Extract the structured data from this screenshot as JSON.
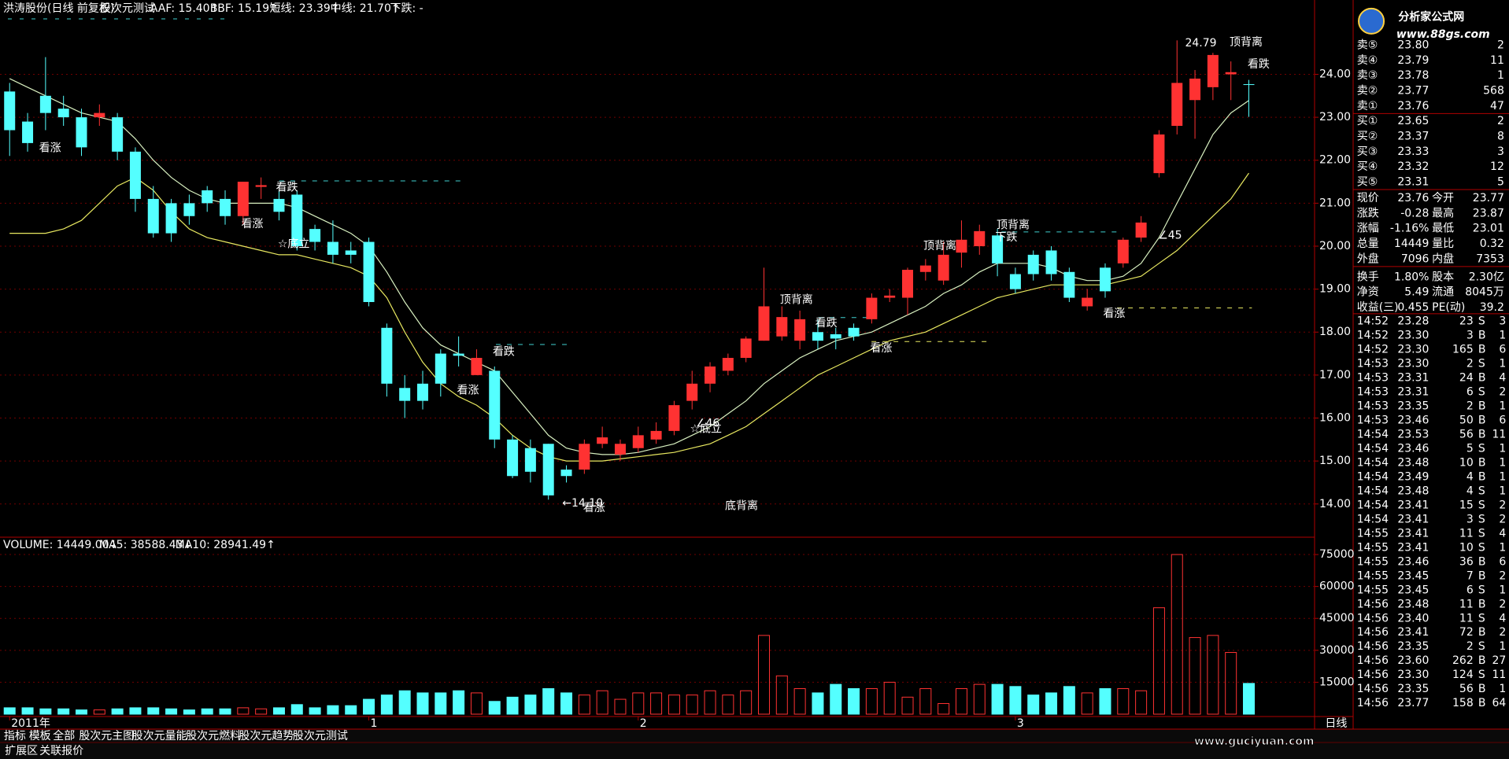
{
  "header": {
    "stock": "洪涛股份(日线 前复权)",
    "formula": "股次元测试",
    "items": [
      {
        "text": "AAF: 15.40↑",
        "color": "#ffffff"
      },
      {
        "text": "BBF: 15.19↑",
        "color": "#ff66ff"
      },
      {
        "text": "短线: 23.39↑",
        "color": "#ffffff"
      },
      {
        "text": "中线: 21.70↑",
        "color": "#ffff60"
      },
      {
        "text": "下跌: -",
        "color": "#40ff40"
      }
    ]
  },
  "chart_data": [
    {
      "type": "candlestick",
      "categories": [
        "2011年",
        null,
        null,
        null,
        null,
        null,
        null,
        null,
        null,
        null,
        null,
        null,
        null,
        null,
        null,
        null,
        null,
        null,
        null,
        null,
        "1",
        null,
        null,
        null,
        null,
        null,
        null,
        null,
        null,
        null,
        null,
        null,
        null,
        null,
        null,
        "2",
        null,
        null,
        null,
        null,
        null,
        null,
        null,
        null,
        null,
        null,
        null,
        null,
        null,
        null,
        null,
        null,
        null,
        null,
        null,
        null,
        "3",
        null,
        null,
        null,
        null,
        null,
        null,
        null,
        null,
        null,
        null,
        null,
        null,
        null
      ],
      "open": [
        23.6,
        22.9,
        23.5,
        23.2,
        23.0,
        23.0,
        23.0,
        22.2,
        21.1,
        21.0,
        21.0,
        21.3,
        21.1,
        20.7,
        21.38,
        21.1,
        21.2,
        20.4,
        20.1,
        19.9,
        20.1,
        18.1,
        16.7,
        16.8,
        17.5,
        17.5,
        17.0,
        17.1,
        15.5,
        15.3,
        15.4,
        14.8,
        14.8,
        15.4,
        15.15,
        15.3,
        15.5,
        15.7,
        16.4,
        16.8,
        17.1,
        17.4,
        17.8,
        17.9,
        17.8,
        18.0,
        17.95,
        18.1,
        18.3,
        18.8,
        18.8,
        19.4,
        19.2,
        19.85,
        20.0,
        20.25,
        19.35,
        19.8,
        19.9,
        19.4,
        18.6,
        19.5,
        19.6,
        20.2,
        21.7,
        22.8,
        23.4,
        23.7,
        24.0,
        23.77
      ],
      "high": [
        23.8,
        23.1,
        24.4,
        23.5,
        23.2,
        23.3,
        23.1,
        22.3,
        21.4,
        21.1,
        21.2,
        21.4,
        21.3,
        21.5,
        21.6,
        21.3,
        21.3,
        20.5,
        20.6,
        20.1,
        20.2,
        18.2,
        17.0,
        17.1,
        17.6,
        17.9,
        17.6,
        17.2,
        15.6,
        15.5,
        15.4,
        14.9,
        15.5,
        15.8,
        15.5,
        15.8,
        15.9,
        16.4,
        17.1,
        17.3,
        17.5,
        17.9,
        19.5,
        18.6,
        18.5,
        18.3,
        18.1,
        18.2,
        18.9,
        19.0,
        19.5,
        19.7,
        20.1,
        20.6,
        20.5,
        20.4,
        19.5,
        19.9,
        20.0,
        19.5,
        19.0,
        19.6,
        20.2,
        20.7,
        22.7,
        24.79,
        24.1,
        24.5,
        24.3,
        23.87
      ],
      "low": [
        22.1,
        22.2,
        22.7,
        22.8,
        22.1,
        22.8,
        22.0,
        20.8,
        20.2,
        20.1,
        20.5,
        20.8,
        20.5,
        20.5,
        21.1,
        20.6,
        19.9,
        19.9,
        19.6,
        19.6,
        18.6,
        16.5,
        16.0,
        16.2,
        16.5,
        17.2,
        17.0,
        15.3,
        14.6,
        14.5,
        14.1,
        14.5,
        14.7,
        15.3,
        15.0,
        15.2,
        15.4,
        15.6,
        16.2,
        16.6,
        17.0,
        17.3,
        17.8,
        17.8,
        17.6,
        17.6,
        17.6,
        17.8,
        18.2,
        18.7,
        18.4,
        19.2,
        19.1,
        19.5,
        19.8,
        19.3,
        18.9,
        19.2,
        19.2,
        18.7,
        18.5,
        18.8,
        19.5,
        20.1,
        21.6,
        22.6,
        22.5,
        23.4,
        23.4,
        23.01
      ],
      "close": [
        22.7,
        22.4,
        23.1,
        23.0,
        22.3,
        23.1,
        22.2,
        21.1,
        20.3,
        20.3,
        20.7,
        21.0,
        20.7,
        21.5,
        21.42,
        20.8,
        20.0,
        20.1,
        19.8,
        19.8,
        18.7,
        16.8,
        16.4,
        16.4,
        16.8,
        17.45,
        17.4,
        15.5,
        14.65,
        14.75,
        14.2,
        14.65,
        15.4,
        15.55,
        15.4,
        15.6,
        15.7,
        16.3,
        16.8,
        17.2,
        17.4,
        17.85,
        18.6,
        18.35,
        18.3,
        17.8,
        17.85,
        17.9,
        18.8,
        18.85,
        19.45,
        19.55,
        19.8,
        20.15,
        20.35,
        19.6,
        19.0,
        19.35,
        19.35,
        18.8,
        18.8,
        18.95,
        20.15,
        20.55,
        22.6,
        23.8,
        23.9,
        24.45,
        24.05,
        23.76
      ],
      "up_color": "#ff3232",
      "down_color": "#54ffff",
      "series": [
        {
          "name": "短线",
          "color": "#d8f0c0",
          "values": [
            23.9,
            23.7,
            23.5,
            23.3,
            23.1,
            23.0,
            22.9,
            22.5,
            22.0,
            21.6,
            21.3,
            21.1,
            21.0,
            21.0,
            21.0,
            21.0,
            20.9,
            20.7,
            20.5,
            20.3,
            20.0,
            19.4,
            18.7,
            18.1,
            17.7,
            17.5,
            17.3,
            17.1,
            16.6,
            16.1,
            15.6,
            15.3,
            15.2,
            15.15,
            15.15,
            15.2,
            15.3,
            15.4,
            15.6,
            15.8,
            16.1,
            16.4,
            16.8,
            17.1,
            17.4,
            17.6,
            17.8,
            17.9,
            18.0,
            18.2,
            18.4,
            18.6,
            18.9,
            19.1,
            19.4,
            19.6,
            19.6,
            19.6,
            19.5,
            19.3,
            19.2,
            19.2,
            19.3,
            19.6,
            20.2,
            21.0,
            21.8,
            22.6,
            23.1,
            23.39
          ]
        },
        {
          "name": "中线",
          "color": "#e8e860",
          "values": [
            20.3,
            20.3,
            20.3,
            20.4,
            20.6,
            21.0,
            21.4,
            21.6,
            21.3,
            20.8,
            20.4,
            20.2,
            20.1,
            20.0,
            19.9,
            19.8,
            19.8,
            19.7,
            19.6,
            19.5,
            19.3,
            18.8,
            18.0,
            17.3,
            16.8,
            16.5,
            16.3,
            16.0,
            15.6,
            15.3,
            15.1,
            15.0,
            15.0,
            15.0,
            15.05,
            15.1,
            15.15,
            15.2,
            15.3,
            15.4,
            15.6,
            15.8,
            16.1,
            16.4,
            16.7,
            17.0,
            17.2,
            17.4,
            17.6,
            17.8,
            17.9,
            18.0,
            18.2,
            18.4,
            18.6,
            18.8,
            18.9,
            19.0,
            19.1,
            19.1,
            19.1,
            19.1,
            19.2,
            19.3,
            19.6,
            19.9,
            20.3,
            20.7,
            21.1,
            21.7
          ]
        }
      ],
      "annotations": [
        "看涨",
        "看涨",
        "看跌",
        "☆底立",
        "看跌",
        "看涨",
        "←14.10",
        "看涨",
        "底背离",
        "∠46",
        "☆底立",
        "顶背离",
        "看跌",
        "看涨",
        "顶背离",
        "顶背离",
        "下跌",
        "看涨",
        "∠45",
        "24.79",
        "顶背离",
        "看跌"
      ],
      "ylim": [
        13.3,
        25.4
      ],
      "yticks": [
        {
          "value": 14,
          "label": "14.00"
        },
        {
          "value": 15,
          "label": "15.00"
        },
        {
          "value": 16,
          "label": "16.00"
        },
        {
          "value": 17,
          "label": "17.00"
        },
        {
          "value": 18,
          "label": "18.00"
        },
        {
          "value": 19,
          "label": "19.00"
        },
        {
          "value": 20,
          "label": "20.00"
        },
        {
          "value": 21,
          "label": "21.00"
        },
        {
          "value": 22,
          "label": "22.00"
        },
        {
          "value": 23,
          "label": "23.00"
        },
        {
          "value": 24,
          "label": "24.00"
        }
      ],
      "grid": true
    },
    {
      "type": "bar",
      "title": "VOLUME: 14449.00↓",
      "legend": [
        {
          "text": "MA5: 38588.43↓",
          "color": "#ffffff"
        },
        {
          "text": "MA10: 28941.49↑",
          "color": "#ffff60"
        }
      ],
      "values": [
        3000,
        3000,
        2500,
        2500,
        2000,
        2000,
        2500,
        3000,
        3000,
        2500,
        2000,
        2500,
        2500,
        3000,
        2500,
        3000,
        4500,
        3000,
        4000,
        4000,
        7000,
        9000,
        11000,
        10000,
        10000,
        11000,
        10000,
        6000,
        8000,
        9000,
        12000,
        10000,
        9000,
        11000,
        7000,
        10000,
        10000,
        9000,
        9000,
        11000,
        9000,
        11000,
        37000,
        18000,
        12000,
        10000,
        14000,
        12000,
        12000,
        15000,
        8000,
        12000,
        5000,
        12000,
        14000,
        14000,
        13000,
        9000,
        10000,
        13000,
        10000,
        12000,
        12000,
        11000,
        50000,
        75000,
        36000,
        37000,
        29000,
        14449
      ],
      "ylim": [
        0,
        80000
      ],
      "yticks": [
        15000,
        30000,
        45000,
        60000,
        75000
      ],
      "grid": true
    }
  ],
  "order_book": [
    [
      "卖⑤",
      "23.80",
      "2"
    ],
    [
      "卖④",
      "23.79",
      "11"
    ],
    [
      "卖③",
      "23.78",
      "1"
    ],
    [
      "卖②",
      "23.77",
      "568"
    ],
    [
      "卖①",
      "23.76",
      "47"
    ],
    [
      "买①",
      "23.65",
      "2"
    ],
    [
      "买②",
      "23.37",
      "8"
    ],
    [
      "买③",
      "23.33",
      "3"
    ],
    [
      "买④",
      "23.32",
      "12"
    ],
    [
      "买⑤",
      "23.31",
      "5"
    ]
  ],
  "quote": [
    [
      "现价",
      "23.76",
      "今开",
      "23.77"
    ],
    [
      "涨跌",
      "-0.28",
      "最高",
      "23.87"
    ],
    [
      "涨幅",
      "-1.16%",
      "最低",
      "23.01"
    ],
    [
      "总量",
      "14449",
      "量比",
      "0.32"
    ],
    [
      "外盘",
      "7096",
      "内盘",
      "7353"
    ],
    [
      "换手",
      "1.80%",
      "股本",
      "2.30亿"
    ],
    [
      "净资",
      "5.49",
      "流通",
      "8045万"
    ],
    [
      "收益(三)",
      "0.455",
      "PE(动)",
      "39.2"
    ]
  ],
  "ticks": [
    [
      "14:52",
      "23.28",
      "23",
      "S",
      "3"
    ],
    [
      "14:52",
      "23.30",
      "3",
      "B",
      "1"
    ],
    [
      "14:52",
      "23.30",
      "165",
      "B",
      "6"
    ],
    [
      "14:53",
      "23.30",
      "2",
      "S",
      "1"
    ],
    [
      "14:53",
      "23.31",
      "24",
      "B",
      "4"
    ],
    [
      "14:53",
      "23.31",
      "6",
      "S",
      "2"
    ],
    [
      "14:53",
      "23.35",
      "2",
      "B",
      "1"
    ],
    [
      "14:53",
      "23.46",
      "50",
      "B",
      "6"
    ],
    [
      "14:54",
      "23.53",
      "56",
      "B",
      "11"
    ],
    [
      "14:54",
      "23.46",
      "5",
      "S",
      "1"
    ],
    [
      "14:54",
      "23.48",
      "10",
      "B",
      "1"
    ],
    [
      "14:54",
      "23.49",
      "4",
      "B",
      "1"
    ],
    [
      "14:54",
      "23.48",
      "4",
      "S",
      "1"
    ],
    [
      "14:54",
      "23.41",
      "15",
      "S",
      "2"
    ],
    [
      "14:54",
      "23.41",
      "3",
      "S",
      "2"
    ],
    [
      "14:55",
      "23.41",
      "11",
      "S",
      "4"
    ],
    [
      "14:55",
      "23.41",
      "10",
      "S",
      "1"
    ],
    [
      "14:55",
      "23.46",
      "36",
      "B",
      "6"
    ],
    [
      "14:55",
      "23.45",
      "7",
      "B",
      "2"
    ],
    [
      "14:55",
      "23.45",
      "6",
      "S",
      "1"
    ],
    [
      "14:56",
      "23.48",
      "11",
      "B",
      "2"
    ],
    [
      "14:56",
      "23.40",
      "11",
      "S",
      "4"
    ],
    [
      "14:56",
      "23.41",
      "72",
      "B",
      "2"
    ],
    [
      "14:56",
      "23.35",
      "2",
      "S",
      "1"
    ],
    [
      "14:56",
      "23.60",
      "262",
      "B",
      "27"
    ],
    [
      "14:56",
      "23.30",
      "124",
      "S",
      "11"
    ],
    [
      "14:56",
      "23.35",
      "56",
      "B",
      "1"
    ],
    [
      "14:56",
      "23.77",
      "158",
      "B",
      "64"
    ]
  ],
  "period": "日线",
  "tabs": [
    "指标",
    "模板",
    "全部",
    "股次元主图",
    "股次元量能",
    "股次元燃料",
    "股次元趋势",
    "股次元测试"
  ],
  "tabs2": [
    "扩展区",
    "关联报价"
  ],
  "watermarks": [
    "分析家公式网",
    "www.88gs.com",
    "www.guciyuan.com"
  ]
}
